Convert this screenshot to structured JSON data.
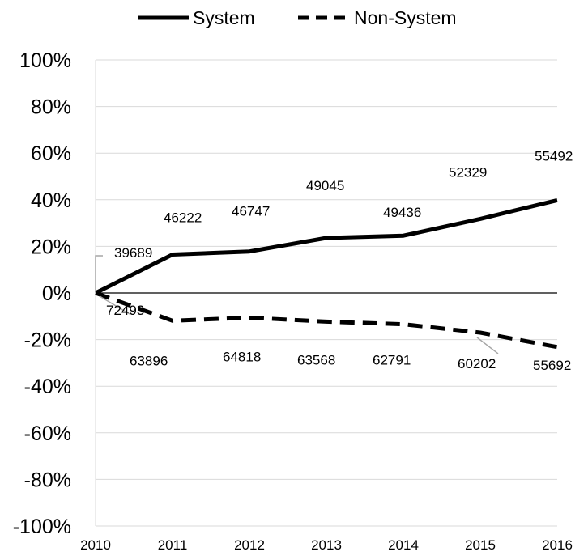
{
  "chart_data": {
    "type": "line",
    "x": [
      "2010",
      "2011",
      "2012",
      "2013",
      "2014",
      "2015",
      "2016"
    ],
    "y_ticks": [
      "100%",
      "80%",
      "60%",
      "40%",
      "20%",
      "0%",
      "-20%",
      "-40%",
      "-60%",
      "-80%",
      "-100%"
    ],
    "ylim": [
      -100,
      100
    ],
    "grid": "horizontal",
    "legend": "top-center",
    "series": [
      {
        "name": "System",
        "style": "solid",
        "color": "#000000",
        "values": [
          0,
          16.5,
          17.8,
          23.6,
          24.6,
          31.8,
          39.8
        ],
        "labels": [
          "39689",
          "46222",
          "46747",
          "49045",
          "49436",
          "52329",
          "55492"
        ]
      },
      {
        "name": "Non-System",
        "style": "dashed",
        "color": "#000000",
        "values": [
          0,
          -11.9,
          -10.6,
          -12.3,
          -13.4,
          -17.0,
          -23.2
        ],
        "labels": [
          "72493",
          "63896",
          "64818",
          "63568",
          "62791",
          "60202",
          "55692"
        ]
      }
    ]
  }
}
